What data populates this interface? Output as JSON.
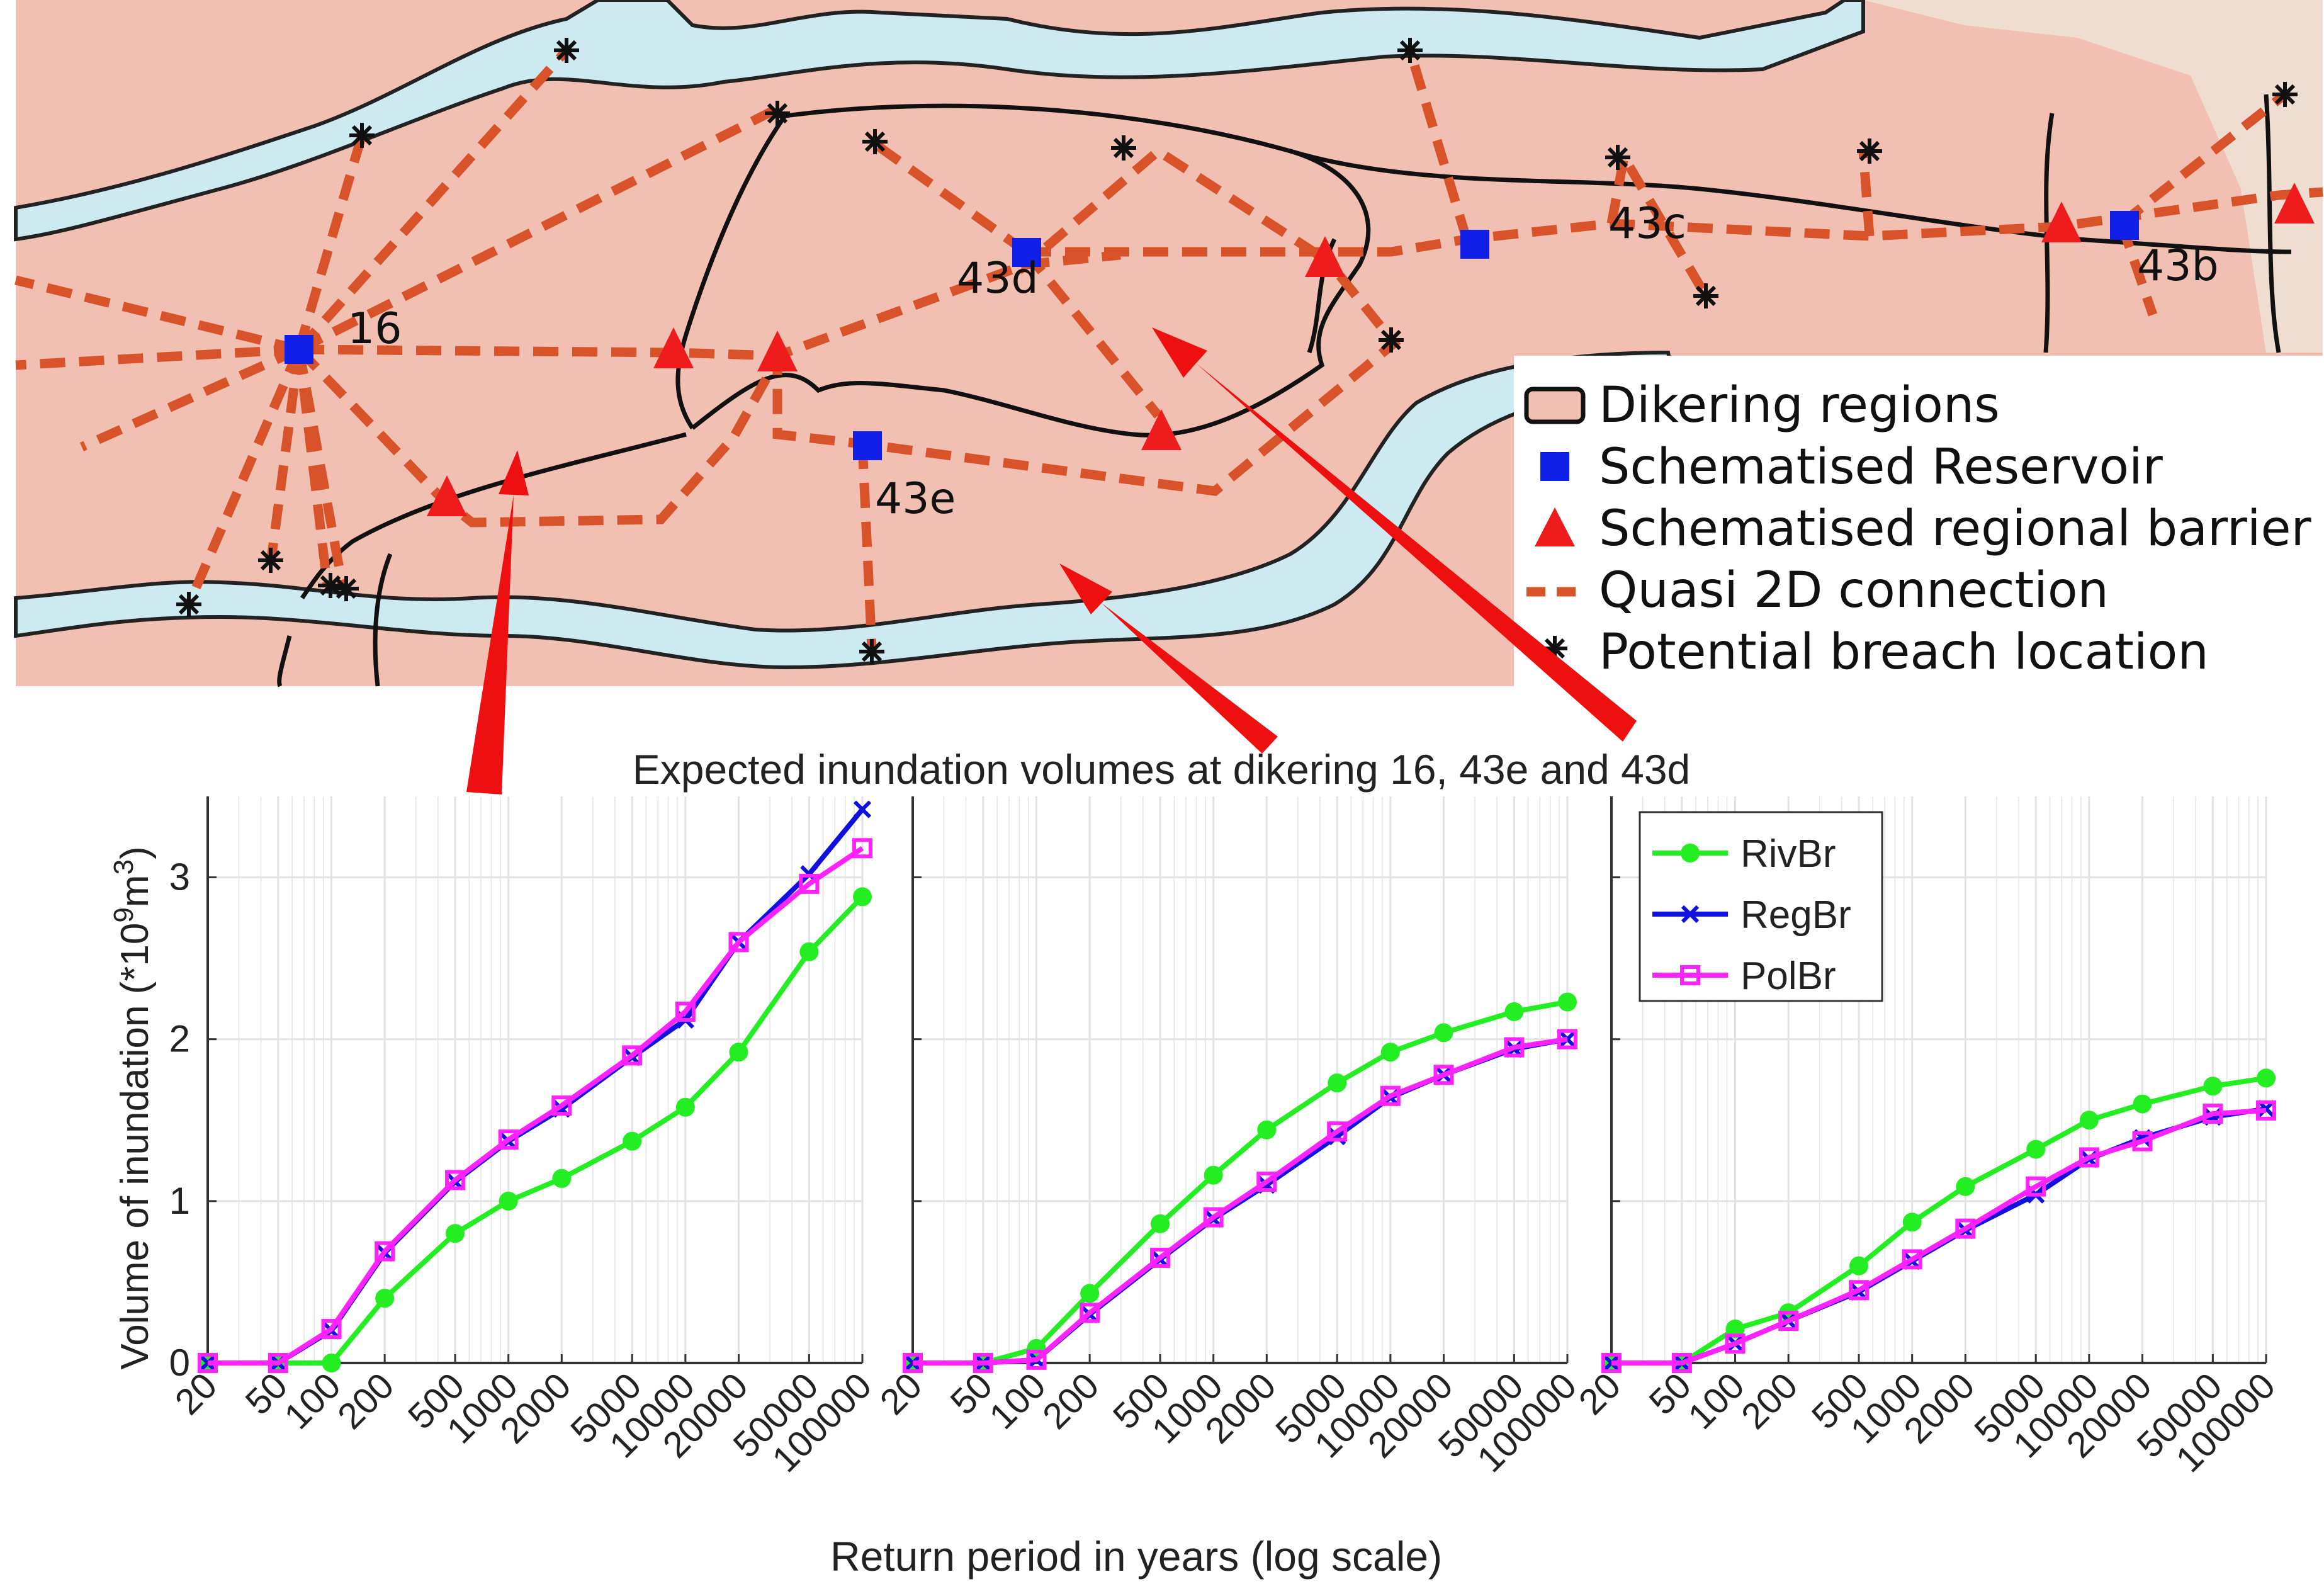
{
  "map": {
    "region_labels": [
      "16",
      "43d",
      "43c",
      "43b",
      "43e"
    ],
    "legend": [
      {
        "label": "Dikering regions",
        "icon": "dikering-region-swatch"
      },
      {
        "label": "Schematised Reservoir",
        "icon": "blue-square-icon"
      },
      {
        "label": "Schematised regional barrier",
        "icon": "red-triangle-icon"
      },
      {
        "label": "Quasi 2D connection",
        "icon": "dashed-line-icon"
      },
      {
        "label": "Potential breach location",
        "icon": "asterisk-icon"
      }
    ],
    "colors": {
      "region_fill": "#f2c0b2",
      "water": "#cdeaf0",
      "connection": "#d9532a",
      "reservoir": "#1020e8",
      "barrier": "#ee1c1c",
      "arrow": "#ee1010"
    }
  },
  "chart_title": "Expected inundation volumes at dikering 16, 43e and 43d",
  "chart_data": {
    "type": "line",
    "title": "Expected inundation volumes at dikering 16, 43e and 43d",
    "xlabel": "Return period in years (log scale)",
    "ylabel_prefix": "Volume of inundation (*10",
    "ylabel_exp1": "9",
    "ylabel_mid": "m",
    "ylabel_exp2": "3",
    "ylabel_suffix": ")",
    "x_scale": "log",
    "xlim": [
      20,
      100000
    ],
    "ylim": [
      0,
      3.5
    ],
    "x_ticks": [
      20,
      50,
      100,
      200,
      500,
      1000,
      2000,
      5000,
      10000,
      20000,
      50000,
      100000
    ],
    "x_tick_labels": [
      "20",
      "50",
      "100",
      "200",
      "500",
      "1000",
      "2000",
      "5000",
      "10000",
      "20000",
      "50000",
      "100000"
    ],
    "y_ticks": [
      0,
      1,
      2,
      3
    ],
    "y_tick_labels": [
      "0",
      "1",
      "2",
      "3"
    ],
    "grid": true,
    "legend_placement": "top-left of third panel",
    "series_styles": [
      {
        "name": "RivBr",
        "color": "#22ee22",
        "marker": "circle"
      },
      {
        "name": "RegBr",
        "color": "#1010e0",
        "marker": "x"
      },
      {
        "name": "PolBr",
        "color": "#ff22ff",
        "marker": "square"
      }
    ],
    "panels": [
      {
        "x": [
          20,
          50,
          100,
          200,
          500,
          1000,
          2000,
          5000,
          10000,
          20000,
          50000,
          100000
        ],
        "series": [
          {
            "name": "RivBr",
            "values": [
              0,
              0,
              0,
              0.4,
              0.8,
              1.0,
              1.14,
              1.37,
              1.58,
              1.92,
              2.54,
              2.88
            ]
          },
          {
            "name": "RegBr",
            "values": [
              0,
              0,
              0.2,
              0.68,
              1.12,
              1.37,
              1.57,
              1.89,
              2.12,
              2.6,
              3.02,
              3.42
            ]
          },
          {
            "name": "PolBr",
            "values": [
              0,
              0,
              0.21,
              0.69,
              1.13,
              1.38,
              1.59,
              1.9,
              2.17,
              2.6,
              2.96,
              3.18
            ]
          }
        ]
      },
      {
        "x": [
          20,
          50,
          100,
          200,
          500,
          1000,
          2000,
          5000,
          10000,
          20000,
          50000,
          100000
        ],
        "series": [
          {
            "name": "RivBr",
            "values": [
              0,
              0,
              0.09,
              0.43,
              0.86,
              1.16,
              1.44,
              1.73,
              1.92,
              2.04,
              2.17,
              2.23
            ]
          },
          {
            "name": "RegBr",
            "values": [
              0,
              0,
              0.02,
              0.3,
              0.64,
              0.89,
              1.1,
              1.4,
              1.64,
              1.78,
              1.94,
              2.0
            ]
          },
          {
            "name": "PolBr",
            "values": [
              0,
              0,
              0.02,
              0.31,
              0.65,
              0.9,
              1.12,
              1.43,
              1.65,
              1.78,
              1.95,
              2.0
            ]
          }
        ]
      },
      {
        "x": [
          20,
          50,
          100,
          200,
          500,
          1000,
          2000,
          5000,
          10000,
          20000,
          50000,
          100000
        ],
        "series": [
          {
            "name": "RivBr",
            "values": [
              0,
              0,
              0.21,
              0.31,
              0.6,
              0.87,
              1.09,
              1.32,
              1.5,
              1.6,
              1.71,
              1.76
            ]
          },
          {
            "name": "RegBr",
            "values": [
              0,
              0,
              0.12,
              0.26,
              0.44,
              0.63,
              0.82,
              1.04,
              1.26,
              1.39,
              1.52,
              1.57
            ]
          },
          {
            "name": "PolBr",
            "values": [
              0,
              0,
              0.12,
              0.26,
              0.45,
              0.64,
              0.83,
              1.09,
              1.27,
              1.37,
              1.54,
              1.56
            ]
          }
        ]
      }
    ]
  }
}
